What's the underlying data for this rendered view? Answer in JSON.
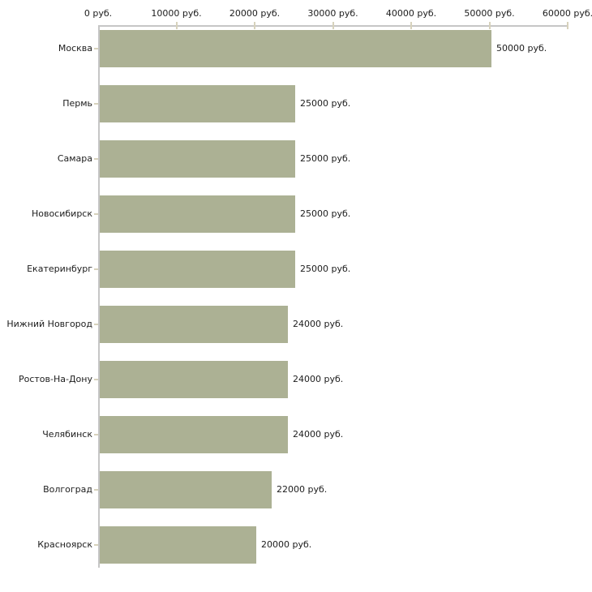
{
  "chart_data": {
    "type": "bar",
    "orientation": "horizontal",
    "title": "",
    "xlabel": "",
    "ylabel": "",
    "unit": "руб.",
    "categories": [
      "Москва",
      "Пермь",
      "Самара",
      "Новосибирск",
      "Екатеринбург",
      "Нижний Новгород",
      "Ростов-На-Дону",
      "Челябинск",
      "Волгоград",
      "Красноярск"
    ],
    "values": [
      50000,
      25000,
      25000,
      25000,
      25000,
      24000,
      24000,
      24000,
      22000,
      20000
    ],
    "value_labels": [
      "50000 руб.",
      "25000 руб.",
      "25000 руб.",
      "25000 руб.",
      "25000 руб.",
      "24000 руб.",
      "24000 руб.",
      "24000 руб.",
      "22000 руб.",
      "20000 руб."
    ],
    "x_ticks": [
      0,
      10000,
      20000,
      30000,
      40000,
      50000,
      60000
    ],
    "x_tick_labels": [
      "0 руб.",
      "10000 руб.",
      "20000 руб.",
      "30000 руб.",
      "40000 руб.",
      "50000 руб.",
      "60000 руб."
    ],
    "xlim": [
      0,
      60000
    ],
    "grid": false,
    "legend": false,
    "colors": {
      "bar": "#acb194",
      "axis": "#c6c6c6",
      "tick": "#d7d2bc",
      "text": "#1c1c1c",
      "background": "#ffffff"
    }
  }
}
